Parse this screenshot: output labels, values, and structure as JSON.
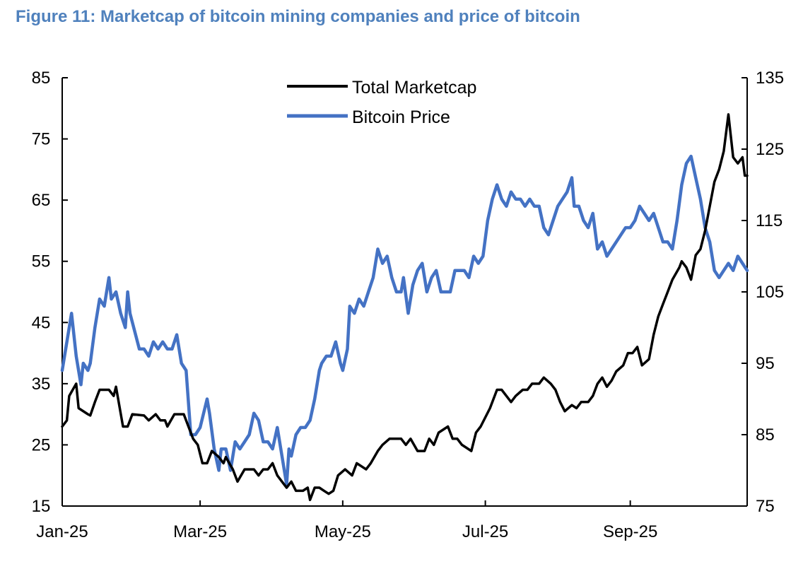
{
  "chart_data": {
    "type": "line",
    "title": "Figure 11: Marketcap of bitcoin mining companies and price of bitcoin",
    "xlabel": "",
    "ylabel_left": "",
    "ylabel_right": "",
    "x_ticks": [
      "Jan-25",
      "Mar-25",
      "May-25",
      "Jul-25",
      "Sep-25"
    ],
    "x_tick_days": [
      0,
      59,
      120,
      181,
      243
    ],
    "x_range_days": [
      0,
      293
    ],
    "ylim_left": [
      15,
      85
    ],
    "yticks_left": [
      15,
      25,
      35,
      45,
      55,
      65,
      75,
      85
    ],
    "ylim_right": [
      75,
      135
    ],
    "yticks_right": [
      75,
      85,
      95,
      105,
      115,
      125,
      135
    ],
    "grid": false,
    "legend_position": "top-center",
    "series": [
      {
        "name": "Total Marketcap",
        "axis": "left",
        "color": "#000000",
        "points": [
          [
            0,
            28
          ],
          [
            2,
            29
          ],
          [
            3,
            33
          ],
          [
            6,
            35
          ],
          [
            7,
            31
          ],
          [
            11,
            30
          ],
          [
            12,
            29.8
          ],
          [
            14,
            32
          ],
          [
            16,
            34
          ],
          [
            20,
            34
          ],
          [
            22,
            33
          ],
          [
            23,
            34.5
          ],
          [
            26,
            28
          ],
          [
            28,
            28
          ],
          [
            30,
            30
          ],
          [
            35,
            29.8
          ],
          [
            37,
            29
          ],
          [
            40,
            30
          ],
          [
            42,
            29
          ],
          [
            44,
            29
          ],
          [
            45,
            28
          ],
          [
            48,
            30
          ],
          [
            52,
            30
          ],
          [
            54,
            28
          ],
          [
            56,
            26
          ],
          [
            58,
            25
          ],
          [
            60,
            22
          ],
          [
            62,
            22
          ],
          [
            64,
            24
          ],
          [
            67,
            23
          ],
          [
            69,
            22
          ],
          [
            70,
            23
          ],
          [
            73,
            21
          ],
          [
            75,
            19
          ],
          [
            78,
            21
          ],
          [
            82,
            21
          ],
          [
            84,
            20
          ],
          [
            86,
            21
          ],
          [
            88,
            21
          ],
          [
            90,
            22
          ],
          [
            92,
            20
          ],
          [
            94,
            19
          ],
          [
            96,
            18
          ],
          [
            98,
            19
          ],
          [
            100,
            17.5
          ],
          [
            103,
            17.5
          ],
          [
            105,
            18
          ],
          [
            106,
            16
          ],
          [
            108,
            18
          ],
          [
            110,
            18
          ],
          [
            112,
            17.5
          ],
          [
            114,
            17
          ],
          [
            116,
            17.5
          ],
          [
            118,
            20
          ],
          [
            121,
            21
          ],
          [
            124,
            20
          ],
          [
            126,
            22
          ],
          [
            130,
            21
          ],
          [
            132,
            22
          ],
          [
            135,
            24
          ],
          [
            137,
            25
          ],
          [
            140,
            26
          ],
          [
            145,
            26
          ],
          [
            147,
            25
          ],
          [
            149,
            26
          ],
          [
            152,
            24
          ],
          [
            155,
            24
          ],
          [
            157,
            26
          ],
          [
            159,
            25
          ],
          [
            161,
            27
          ],
          [
            165,
            28
          ],
          [
            167,
            26
          ],
          [
            169,
            26
          ],
          [
            171,
            25
          ],
          [
            175,
            24
          ],
          [
            177,
            27
          ],
          [
            179,
            28
          ],
          [
            183,
            31
          ],
          [
            186,
            34
          ],
          [
            188,
            34
          ],
          [
            190,
            33
          ],
          [
            192,
            32
          ],
          [
            194,
            33
          ],
          [
            197,
            34
          ],
          [
            199,
            34
          ],
          [
            201,
            35
          ],
          [
            204,
            35
          ],
          [
            206,
            36
          ],
          [
            209,
            35
          ],
          [
            211,
            34
          ],
          [
            213,
            32
          ],
          [
            215,
            30.5
          ],
          [
            218,
            31.5
          ],
          [
            220,
            31
          ],
          [
            222,
            32
          ],
          [
            225,
            32
          ],
          [
            227,
            33
          ],
          [
            229,
            35
          ],
          [
            231,
            36
          ],
          [
            233,
            34.5
          ],
          [
            235,
            35.5
          ],
          [
            237,
            37
          ],
          [
            240,
            38
          ],
          [
            242,
            40
          ],
          [
            244,
            40
          ],
          [
            246,
            41
          ],
          [
            248,
            38
          ],
          [
            251,
            39
          ],
          [
            253,
            43
          ],
          [
            255,
            46
          ],
          [
            257,
            48
          ],
          [
            259,
            50
          ],
          [
            261,
            52
          ],
          [
            264,
            54
          ],
          [
            265,
            55
          ],
          [
            267,
            54
          ],
          [
            269,
            52
          ],
          [
            271,
            56
          ],
          [
            273,
            57
          ],
          [
            275,
            60
          ],
          [
            277,
            64
          ],
          [
            279,
            68
          ],
          [
            281,
            70
          ],
          [
            283,
            73
          ],
          [
            285,
            79
          ],
          [
            287,
            72
          ],
          [
            289,
            71
          ],
          [
            291,
            72
          ],
          [
            292,
            69
          ],
          [
            293,
            69
          ]
        ]
      },
      {
        "name": "Bitcoin Price",
        "axis": "right",
        "color": "#4472c4",
        "points": [
          [
            0,
            94
          ],
          [
            2,
            98
          ],
          [
            4,
            102
          ],
          [
            6,
            96
          ],
          [
            8,
            92
          ],
          [
            9,
            95
          ],
          [
            11,
            94
          ],
          [
            12,
            95
          ],
          [
            14,
            100
          ],
          [
            16,
            104
          ],
          [
            18,
            103
          ],
          [
            20,
            107
          ],
          [
            21,
            104
          ],
          [
            23,
            105
          ],
          [
            25,
            102
          ],
          [
            27,
            100
          ],
          [
            28,
            105
          ],
          [
            29,
            102
          ],
          [
            33,
            97
          ],
          [
            35,
            97
          ],
          [
            37,
            96
          ],
          [
            39,
            98
          ],
          [
            41,
            97
          ],
          [
            43,
            98
          ],
          [
            45,
            97
          ],
          [
            47,
            97
          ],
          [
            49,
            99
          ],
          [
            51,
            95
          ],
          [
            53,
            94
          ],
          [
            55,
            85
          ],
          [
            57,
            85
          ],
          [
            59,
            86
          ],
          [
            62,
            90
          ],
          [
            63,
            88
          ],
          [
            65,
            83
          ],
          [
            67,
            80
          ],
          [
            68,
            83
          ],
          [
            70,
            83
          ],
          [
            72,
            80
          ],
          [
            74,
            84
          ],
          [
            76,
            83
          ],
          [
            78,
            84
          ],
          [
            80,
            85
          ],
          [
            82,
            88
          ],
          [
            84,
            87
          ],
          [
            86,
            84
          ],
          [
            88,
            84
          ],
          [
            90,
            83
          ],
          [
            92,
            86
          ],
          [
            94,
            82
          ],
          [
            96,
            78
          ],
          [
            97,
            83
          ],
          [
            98,
            82
          ],
          [
            100,
            85
          ],
          [
            102,
            86
          ],
          [
            104,
            86
          ],
          [
            106,
            87
          ],
          [
            108,
            90
          ],
          [
            110,
            94
          ],
          [
            111,
            95
          ],
          [
            113,
            96
          ],
          [
            115,
            96
          ],
          [
            117,
            98
          ],
          [
            119,
            95
          ],
          [
            120,
            94
          ],
          [
            122,
            97
          ],
          [
            123,
            103
          ],
          [
            125,
            102
          ],
          [
            127,
            104
          ],
          [
            129,
            103
          ],
          [
            131,
            105
          ],
          [
            133,
            107
          ],
          [
            135,
            111
          ],
          [
            137,
            109
          ],
          [
            139,
            110
          ],
          [
            141,
            107
          ],
          [
            143,
            105
          ],
          [
            145,
            105
          ],
          [
            146,
            107
          ],
          [
            148,
            102
          ],
          [
            150,
            106
          ],
          [
            152,
            108
          ],
          [
            154,
            109
          ],
          [
            156,
            105
          ],
          [
            158,
            107
          ],
          [
            160,
            108
          ],
          [
            162,
            105
          ],
          [
            164,
            105
          ],
          [
            166,
            105
          ],
          [
            168,
            108
          ],
          [
            170,
            108
          ],
          [
            172,
            108
          ],
          [
            174,
            107
          ],
          [
            176,
            110
          ],
          [
            178,
            109
          ],
          [
            180,
            110
          ],
          [
            182,
            115
          ],
          [
            184,
            118
          ],
          [
            186,
            120
          ],
          [
            188,
            118
          ],
          [
            190,
            117
          ],
          [
            192,
            119
          ],
          [
            194,
            118
          ],
          [
            196,
            118
          ],
          [
            198,
            117
          ],
          [
            200,
            118
          ],
          [
            202,
            117
          ],
          [
            204,
            117
          ],
          [
            206,
            114
          ],
          [
            208,
            113
          ],
          [
            210,
            115
          ],
          [
            212,
            117
          ],
          [
            214,
            118
          ],
          [
            216,
            119
          ],
          [
            218,
            121
          ],
          [
            219,
            117
          ],
          [
            221,
            117
          ],
          [
            223,
            115
          ],
          [
            225,
            114
          ],
          [
            227,
            116
          ],
          [
            229,
            111
          ],
          [
            231,
            112
          ],
          [
            233,
            110
          ],
          [
            235,
            111
          ],
          [
            237,
            112
          ],
          [
            239,
            113
          ],
          [
            241,
            114
          ],
          [
            243,
            114
          ],
          [
            245,
            115
          ],
          [
            247,
            117
          ],
          [
            249,
            116
          ],
          [
            251,
            115
          ],
          [
            253,
            116
          ],
          [
            255,
            114
          ],
          [
            257,
            112
          ],
          [
            259,
            112
          ],
          [
            261,
            111
          ],
          [
            263,
            115
          ],
          [
            265,
            120
          ],
          [
            267,
            123
          ],
          [
            269,
            124
          ],
          [
            271,
            121
          ],
          [
            273,
            118
          ],
          [
            275,
            114
          ],
          [
            277,
            112
          ],
          [
            279,
            108
          ],
          [
            281,
            107
          ],
          [
            283,
            108
          ],
          [
            285,
            109
          ],
          [
            287,
            108
          ],
          [
            289,
            110
          ],
          [
            291,
            109
          ],
          [
            293,
            108
          ]
        ]
      }
    ]
  }
}
